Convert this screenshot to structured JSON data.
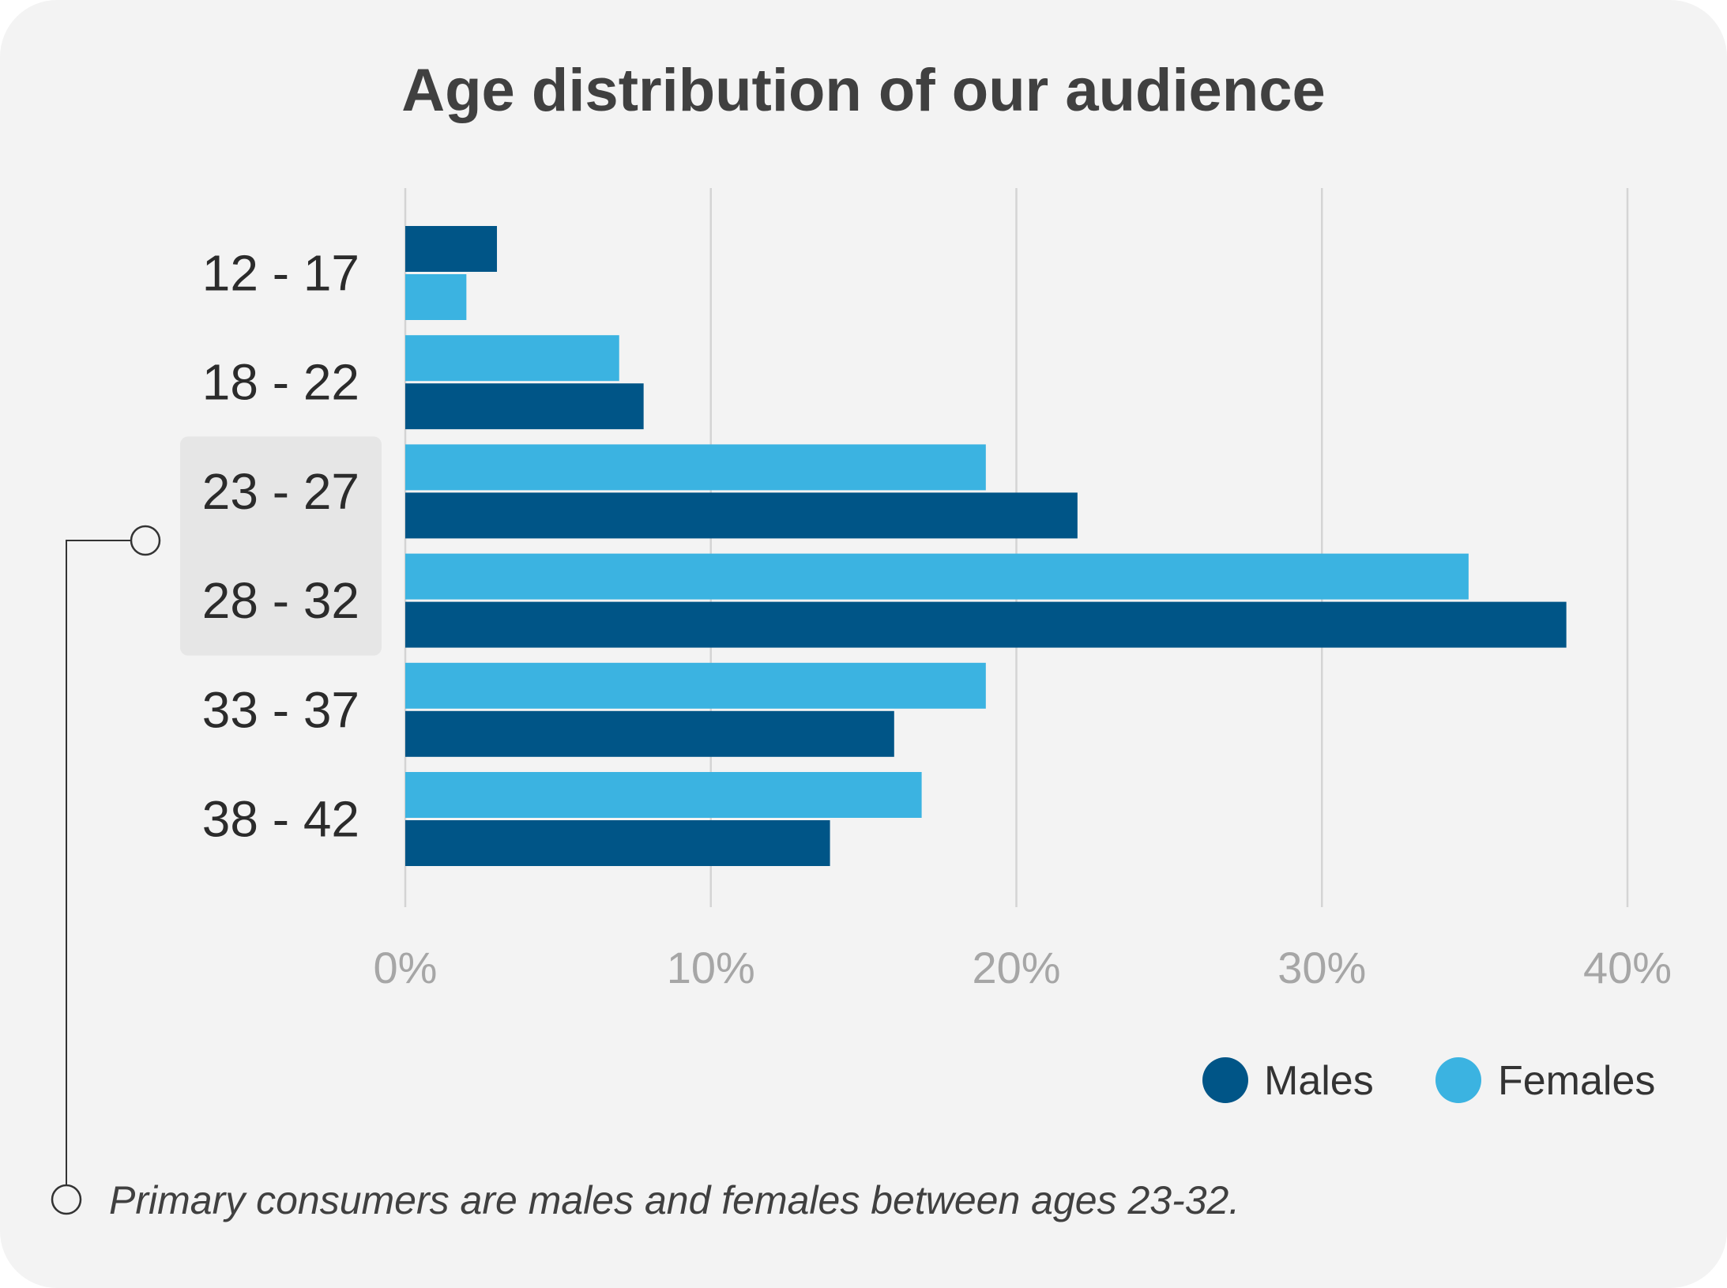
{
  "chart_data": {
    "type": "bar",
    "orientation": "horizontal",
    "title": "Age distribution of our audience",
    "categories": [
      "12 - 17",
      "18 - 22",
      "23 - 27",
      "28 - 32",
      "33 - 37",
      "38 - 42"
    ],
    "highlighted_categories": [
      "23 - 27",
      "28 - 32"
    ],
    "series": [
      {
        "name": "Males",
        "color": "#005587",
        "values": [
          3,
          7.8,
          22,
          38,
          16,
          13.9
        ]
      },
      {
        "name": "Females",
        "color": "#3bb3e1",
        "values": [
          2,
          7,
          19,
          34.8,
          19,
          16.9
        ]
      }
    ],
    "bar_order": [
      [
        "Males",
        "Females"
      ],
      [
        "Females",
        "Males"
      ],
      [
        "Females",
        "Males"
      ],
      [
        "Females",
        "Males"
      ],
      [
        "Females",
        "Males"
      ],
      [
        "Females",
        "Males"
      ]
    ],
    "xlim": [
      0,
      40
    ],
    "xticks": [
      "0%",
      "10%",
      "20%",
      "30%",
      "40%"
    ],
    "xtick_values": [
      0,
      10,
      20,
      30,
      40
    ],
    "xlabel": "",
    "ylabel": "",
    "grid": "vertical",
    "legend": {
      "position": "bottom-right",
      "items": [
        "Males",
        "Females"
      ]
    },
    "annotation": "Primary consumers are males and females between ages 23-32."
  }
}
